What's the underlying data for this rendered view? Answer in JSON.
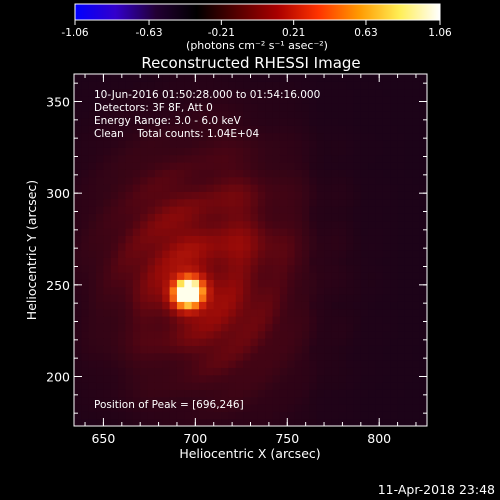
{
  "chart_data": {
    "type": "heatmap",
    "title": "Reconstructed RHESSI Image",
    "xlabel": "Heliocentric X (arcsec)",
    "ylabel": "Heliocentric Y (arcsec)",
    "xlim": [
      634,
      826
    ],
    "ylim": [
      173,
      365
    ],
    "xticks": [
      650,
      700,
      750,
      800
    ],
    "yticks": [
      200,
      250,
      300,
      350
    ],
    "colorbar": {
      "min": -1.06,
      "max": 1.06,
      "ticks": [
        "-1.06",
        "-0.63",
        "-0.21",
        "0.21",
        "0.63",
        "1.06"
      ],
      "label": "(photons cm⁻² s⁻¹ asec⁻²)",
      "colormap": [
        "#0000ff",
        "#3300cc",
        "#220033",
        "#000000",
        "#550000",
        "#aa0000",
        "#ff3300",
        "#ff9900",
        "#ffee55",
        "#ffffff"
      ]
    },
    "peak": {
      "x": 696,
      "y": 246,
      "value": 1.06
    },
    "emission_extent": {
      "x_range": [
        640,
        770
      ],
      "y_range": [
        180,
        340
      ]
    },
    "annotations": [
      "10-Jun-2016 01:50:28.000 to 01:54:16.000",
      "Detectors: 3F 8F, Att 0",
      "Energy Range: 3.0 - 6.0 keV",
      "Clean    Total counts: 1.04E+04"
    ],
    "peak_text": "Position of Peak = [696,246]",
    "timestamp": "11-Apr-2018 23:48"
  }
}
